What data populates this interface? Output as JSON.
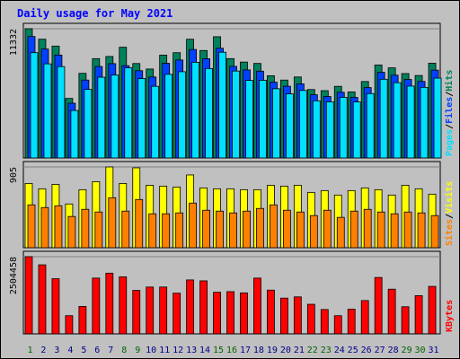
{
  "chart_data": {
    "type": "bar",
    "title": "Daily usage for May 2021",
    "categories": [
      "1",
      "2",
      "3",
      "4",
      "5",
      "6",
      "7",
      "8",
      "9",
      "10",
      "11",
      "12",
      "13",
      "14",
      "15",
      "16",
      "17",
      "18",
      "19",
      "20",
      "21",
      "22",
      "23",
      "24",
      "25",
      "26",
      "27",
      "28",
      "29",
      "30",
      "31"
    ],
    "weekend_days": [
      "1",
      "8",
      "9",
      "15",
      "16",
      "22",
      "23",
      "29",
      "30"
    ],
    "panels": [
      {
        "id": "pages-files-hits",
        "tick_label": "11332",
        "ylim": [
          0,
          11332
        ],
        "legend": [
          {
            "text": "Pages",
            "color": "#00e0ff"
          },
          {
            "text": "/",
            "color": "#000000"
          },
          {
            "text": "Files",
            "color": "#0040ff"
          },
          {
            "text": "/",
            "color": "#000000"
          },
          {
            "text": "Hits",
            "color": "#00805c"
          }
        ],
        "series": [
          {
            "name": "Hits",
            "color": "#00805c",
            "values": [
              11332,
              10410,
              9810,
              5220,
              7420,
              8710,
              8900,
              9710,
              8280,
              7800,
              9020,
              9230,
              10410,
              9420,
              10630,
              8710,
              8410,
              8290,
              7210,
              6830,
              7100,
              6000,
              5900,
              6280,
              5790,
              6700,
              8150,
              7900,
              7400,
              7230,
              8310
            ]
          },
          {
            "name": "Files",
            "color": "#0040ff",
            "values": [
              10650,
              9550,
              9020,
              4800,
              6830,
              8020,
              8270,
              8090,
              7650,
              7100,
              8300,
              8590,
              9510,
              8700,
              9620,
              8030,
              7720,
              7610,
              6640,
              6290,
              6500,
              5540,
              5390,
              5760,
              5310,
              6170,
              7510,
              7260,
              6880,
              6710,
              7700
            ]
          },
          {
            "name": "Pages",
            "color": "#00e0ff",
            "values": [
              9230,
              8250,
              8010,
              4160,
              6010,
              7080,
              7270,
              7900,
              6960,
              6280,
              7330,
              7560,
              8390,
              7840,
              9270,
              7620,
              6800,
              6810,
              6070,
              5620,
              5920,
              5010,
              4920,
              5310,
              4910,
              5640,
              6900,
              6600,
              6300,
              6190,
              7000
            ]
          }
        ]
      },
      {
        "id": "sites-visits",
        "tick_label": "905",
        "ylim": [
          0,
          905
        ],
        "legend": [
          {
            "text": "Sites",
            "color": "#ff8000"
          },
          {
            "text": "/",
            "color": "#000000"
          },
          {
            "text": "Visits",
            "color": "#ffff00"
          }
        ],
        "series": [
          {
            "name": "Visits",
            "color": "#ffff00",
            "values": [
              720,
              660,
              710,
              490,
              650,
              740,
              905,
              720,
              895,
              700,
              690,
              680,
              815,
              670,
              660,
              660,
              650,
              650,
              700,
              690,
              700,
              620,
              640,
              590,
              640,
              670,
              650,
              590,
              700,
              660,
              600
            ]
          },
          {
            "name": "Sites",
            "color": "#ff8000",
            "values": [
              480,
              450,
              470,
              350,
              430,
              400,
              560,
              410,
              540,
              380,
              380,
              390,
              500,
              420,
              410,
              390,
              410,
              440,
              480,
              420,
              400,
              360,
              420,
              340,
              410,
              430,
              400,
              380,
              400,
              390,
              360
            ]
          }
        ]
      },
      {
        "id": "kbytes",
        "tick_label": "2504458",
        "ylim": [
          0,
          2504458
        ],
        "legend": [
          {
            "text": "KBytes",
            "color": "#ff0000"
          }
        ],
        "series": [
          {
            "name": "KBytes",
            "color": "#ff0000",
            "values": [
              2504458,
              2240000,
              1790000,
              590000,
              890000,
              1810000,
              1970000,
              1850000,
              1410000,
              1520000,
              1520000,
              1320000,
              1750000,
              1720000,
              1350000,
              1370000,
              1330000,
              1810000,
              1420000,
              1160000,
              1200000,
              960000,
              790000,
              590000,
              800000,
              1080000,
              1830000,
              1450000,
              880000,
              1240000,
              1540000
            ]
          }
        ]
      }
    ],
    "colors": {
      "background": "#c0c0c0",
      "title": "#0000ff",
      "gridline": "#808080",
      "weekday_label": "#00008b",
      "weekend_label": "#006400"
    }
  }
}
